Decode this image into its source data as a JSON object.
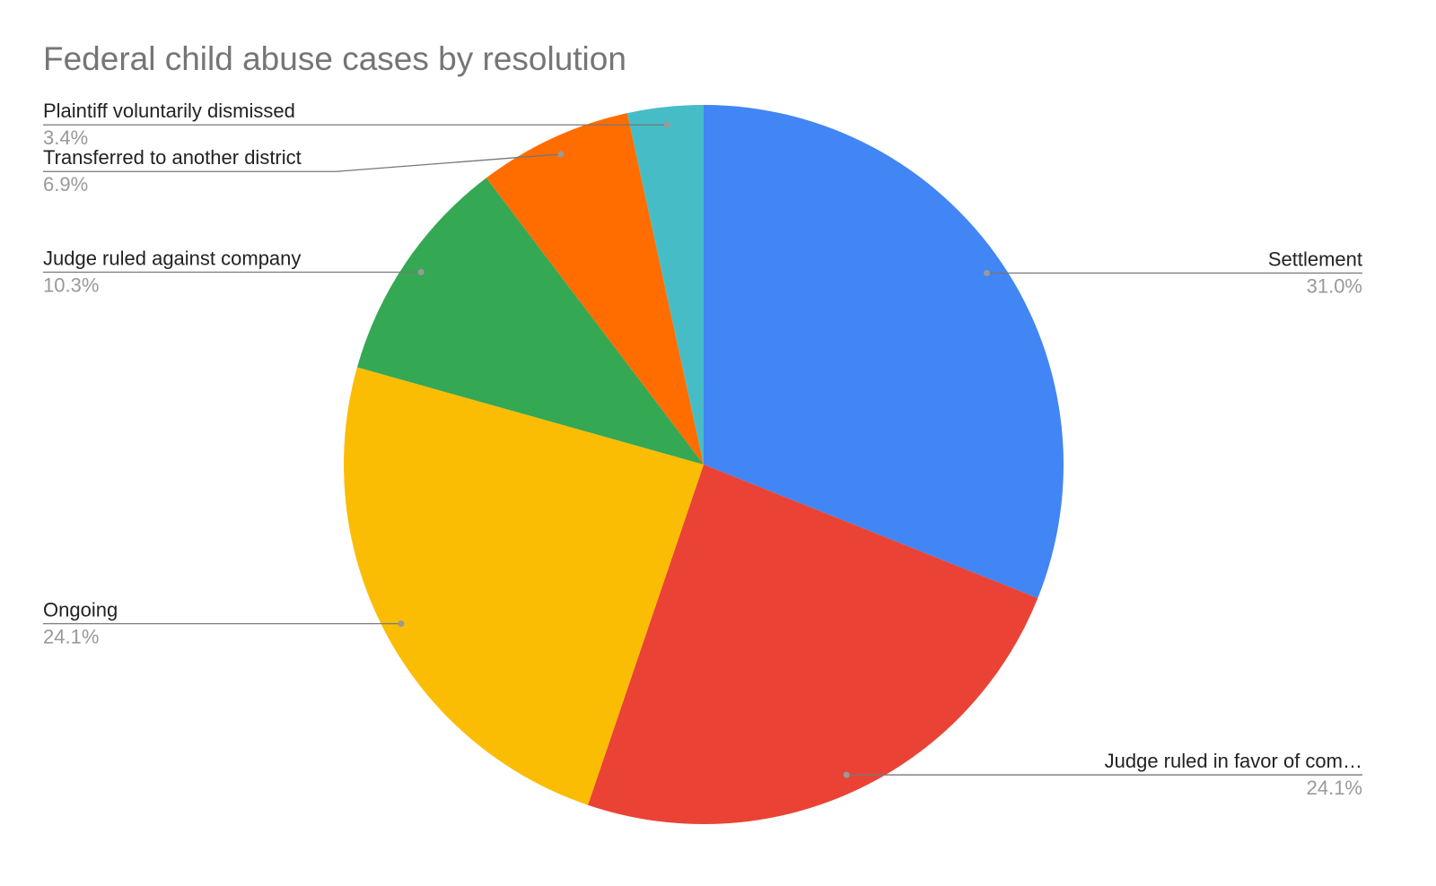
{
  "chart_data": {
    "type": "pie",
    "title": "Federal child abuse cases by resolution",
    "categories": [
      "Settlement",
      "Judge ruled in favor of com…",
      "Ongoing",
      "Judge ruled against company",
      "Transferred to another district",
      "Plaintiff voluntarily dismissed"
    ],
    "values": [
      31.0,
      24.1,
      24.1,
      10.3,
      6.9,
      3.4
    ],
    "value_labels": [
      "31.0%",
      "24.1%",
      "24.1%",
      "10.3%",
      "6.9%",
      "3.4%"
    ],
    "colors": [
      "#4285f4",
      "#ea4335",
      "#fbbc04",
      "#34a853",
      "#ff6d01",
      "#46bdc6"
    ]
  }
}
